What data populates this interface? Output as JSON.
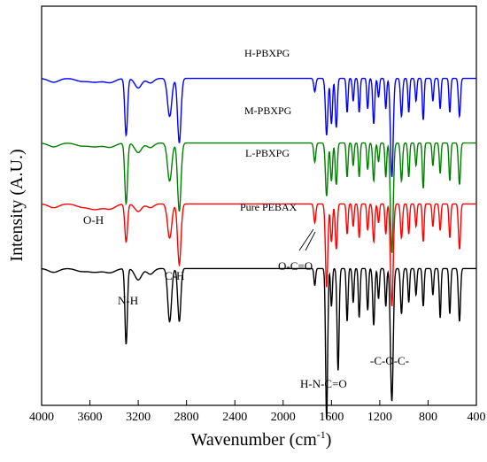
{
  "chart_data": {
    "type": "line",
    "title": "",
    "xlabel": "Wavenumber (cm",
    "xlabel_sup": "-1",
    "xlabel_tail": ")",
    "ylabel": "Intensity (A.U.)",
    "xlim": [
      4000,
      400
    ],
    "x_reversed": true,
    "y_ticks_shown": false,
    "grid": false,
    "legend": "none",
    "x_ticks": [
      "4000",
      "3600",
      "3200",
      "2800",
      "2400",
      "2000",
      "1600",
      "1200",
      "800",
      "400"
    ],
    "series": [
      {
        "name": "H-PBXPG",
        "color": "#0000ff",
        "base": 8.6,
        "peaks": [
          [
            3900,
            0.1,
            60
          ],
          [
            3680,
            0.06,
            60
          ],
          [
            3560,
            0.1,
            90
          ],
          [
            3430,
            0.1,
            60
          ],
          [
            3300,
            1.5,
            16
          ],
          [
            3200,
            0.25,
            40
          ],
          [
            3100,
            0.12,
            40
          ],
          [
            2940,
            1.0,
            25
          ],
          [
            2860,
            1.7,
            20
          ],
          [
            1738,
            0.35,
            12
          ],
          [
            1640,
            1.5,
            14
          ],
          [
            1600,
            1.2,
            12
          ],
          [
            1560,
            1.3,
            12
          ],
          [
            1470,
            0.9,
            10
          ],
          [
            1420,
            0.6,
            10
          ],
          [
            1370,
            0.9,
            10
          ],
          [
            1300,
            0.8,
            10
          ],
          [
            1250,
            1.2,
            12
          ],
          [
            1210,
            0.5,
            10
          ],
          [
            1150,
            0.8,
            10
          ],
          [
            1100,
            2.6,
            16
          ],
          [
            1020,
            1.0,
            12
          ],
          [
            960,
            0.9,
            10
          ],
          [
            900,
            0.6,
            10
          ],
          [
            840,
            1.1,
            10
          ],
          [
            760,
            0.6,
            10
          ],
          [
            700,
            0.8,
            10
          ],
          [
            620,
            0.9,
            10
          ],
          [
            540,
            1.0,
            12
          ]
        ]
      },
      {
        "name": "M-PBXPG",
        "color": "#008000",
        "base": 6.9,
        "peaks": [
          [
            3900,
            0.1,
            60
          ],
          [
            3680,
            0.06,
            60
          ],
          [
            3560,
            0.1,
            90
          ],
          [
            3430,
            0.1,
            60
          ],
          [
            3300,
            1.6,
            16
          ],
          [
            3200,
            0.25,
            40
          ],
          [
            3100,
            0.12,
            40
          ],
          [
            2940,
            1.0,
            25
          ],
          [
            2860,
            1.8,
            20
          ],
          [
            1738,
            0.5,
            12
          ],
          [
            1640,
            1.4,
            14
          ],
          [
            1600,
            1.0,
            12
          ],
          [
            1560,
            1.1,
            12
          ],
          [
            1470,
            0.9,
            10
          ],
          [
            1420,
            0.6,
            10
          ],
          [
            1370,
            0.9,
            10
          ],
          [
            1300,
            0.7,
            10
          ],
          [
            1250,
            1.0,
            12
          ],
          [
            1210,
            0.5,
            10
          ],
          [
            1150,
            0.9,
            10
          ],
          [
            1100,
            2.9,
            16
          ],
          [
            1020,
            1.0,
            12
          ],
          [
            960,
            0.9,
            10
          ],
          [
            900,
            0.6,
            10
          ],
          [
            840,
            1.2,
            10
          ],
          [
            760,
            0.6,
            10
          ],
          [
            700,
            0.8,
            10
          ],
          [
            620,
            1.0,
            10
          ],
          [
            540,
            1.1,
            12
          ]
        ]
      },
      {
        "name": "L-PBXPG",
        "color": "#ff0000",
        "base": 5.3,
        "peaks": [
          [
            3900,
            0.1,
            60
          ],
          [
            3680,
            0.06,
            60
          ],
          [
            3560,
            0.15,
            90
          ],
          [
            3430,
            0.12,
            60
          ],
          [
            3300,
            1.0,
            16
          ],
          [
            3200,
            0.2,
            40
          ],
          [
            3100,
            0.1,
            40
          ],
          [
            2940,
            0.9,
            25
          ],
          [
            2860,
            1.6,
            20
          ],
          [
            1738,
            0.5,
            12
          ],
          [
            1640,
            2.2,
            14
          ],
          [
            1600,
            1.0,
            12
          ],
          [
            1560,
            1.2,
            12
          ],
          [
            1470,
            0.8,
            10
          ],
          [
            1420,
            0.6,
            10
          ],
          [
            1370,
            0.9,
            10
          ],
          [
            1300,
            0.7,
            10
          ],
          [
            1250,
            1.0,
            12
          ],
          [
            1210,
            0.5,
            10
          ],
          [
            1150,
            0.8,
            10
          ],
          [
            1100,
            2.7,
            16
          ],
          [
            1020,
            0.9,
            12
          ],
          [
            960,
            0.8,
            10
          ],
          [
            900,
            0.6,
            10
          ],
          [
            840,
            1.0,
            10
          ],
          [
            760,
            0.6,
            10
          ],
          [
            700,
            0.7,
            10
          ],
          [
            620,
            0.9,
            10
          ],
          [
            540,
            1.2,
            12
          ]
        ]
      },
      {
        "name": "Pure PEBAX",
        "color": "#000000",
        "base": 3.6,
        "peaks": [
          [
            3900,
            0.1,
            60
          ],
          [
            3680,
            0.06,
            60
          ],
          [
            3560,
            0.1,
            90
          ],
          [
            3430,
            0.1,
            60
          ],
          [
            3300,
            2.0,
            14
          ],
          [
            3200,
            0.3,
            40
          ],
          [
            3100,
            0.15,
            40
          ],
          [
            2940,
            1.4,
            22
          ],
          [
            2860,
            1.4,
            18
          ],
          [
            1738,
            0.45,
            10
          ],
          [
            1640,
            4.0,
            12
          ],
          [
            1600,
            1.0,
            10
          ],
          [
            1545,
            2.7,
            12
          ],
          [
            1470,
            1.4,
            10
          ],
          [
            1420,
            0.9,
            10
          ],
          [
            1370,
            1.3,
            10
          ],
          [
            1300,
            1.1,
            10
          ],
          [
            1250,
            1.5,
            12
          ],
          [
            1210,
            0.8,
            10
          ],
          [
            1150,
            1.0,
            10
          ],
          [
            1100,
            3.5,
            16
          ],
          [
            1020,
            1.2,
            12
          ],
          [
            960,
            0.9,
            10
          ],
          [
            900,
            0.7,
            10
          ],
          [
            840,
            1.0,
            10
          ],
          [
            760,
            0.7,
            10
          ],
          [
            700,
            1.3,
            10
          ],
          [
            620,
            1.2,
            10
          ],
          [
            540,
            1.4,
            12
          ]
        ]
      }
    ],
    "annotations": [
      "O-H",
      "N-H",
      "C-H",
      "O-C=O",
      "H-N-C=O",
      "-C-O-C-"
    ]
  }
}
